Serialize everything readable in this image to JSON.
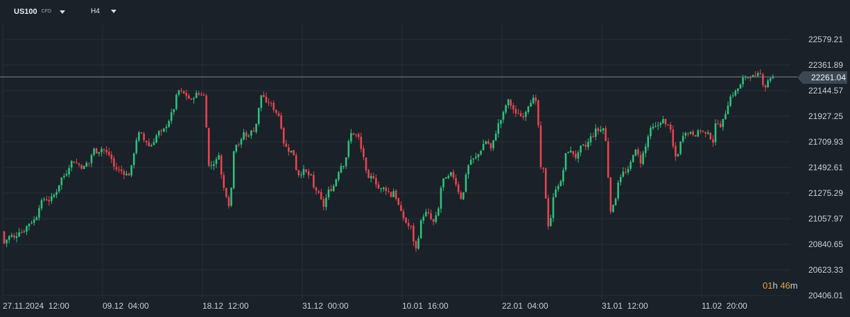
{
  "header": {
    "symbol": "US100",
    "instrument_type": "CFD",
    "timeframe": "H4"
  },
  "colors": {
    "background": "#1a2128",
    "bullish": "#2ec17d",
    "bearish": "#e8444f",
    "grid": "#26313a",
    "price_line": "#7d8a96",
    "countdown_accent": "#e6a23c"
  },
  "last_price": "22261.04",
  "countdown": {
    "hours": "01",
    "h_unit": "h",
    "minutes": "46",
    "m_unit": "m"
  },
  "chart_data": {
    "type": "candlestick",
    "y_axis_labels": [
      "22579.21",
      "22361.89",
      "22144.57",
      "21927.25",
      "21709.93",
      "21492.61",
      "21275.29",
      "21057.97",
      "20840.65",
      "20623.33",
      "20406.01"
    ],
    "x_axis_labels": [
      "27.11.2024  12:00",
      "09.12  04:00",
      "18.12  12:00",
      "31.12  00:00",
      "10.01  16:00",
      "22.01  04:00",
      "31.01  12:00",
      "11.02  20:00"
    ],
    "ylim": [
      20406.01,
      22579.21
    ],
    "grid": true,
    "last_price": 22261.04,
    "close_path": [
      [
        0,
        20950
      ],
      [
        4,
        20830
      ],
      [
        8,
        20870
      ],
      [
        12,
        20900
      ],
      [
        16,
        20920
      ],
      [
        20,
        20890
      ],
      [
        24,
        20920
      ],
      [
        28,
        20960
      ],
      [
        32,
        20940
      ],
      [
        36,
        20970
      ],
      [
        40,
        21010
      ],
      [
        44,
        21030
      ],
      [
        48,
        21040
      ],
      [
        52,
        21060
      ],
      [
        56,
        21160
      ],
      [
        60,
        21200
      ],
      [
        64,
        21230
      ],
      [
        68,
        21220
      ],
      [
        72,
        21210
      ],
      [
        76,
        21250
      ],
      [
        80,
        21270
      ],
      [
        84,
        21330
      ],
      [
        88,
        21400
      ],
      [
        92,
        21420
      ],
      [
        96,
        21450
      ],
      [
        100,
        21510
      ],
      [
        104,
        21550
      ],
      [
        108,
        21540
      ],
      [
        112,
        21520
      ],
      [
        116,
        21510
      ],
      [
        120,
        21480
      ],
      [
        124,
        21530
      ],
      [
        128,
        21520
      ],
      [
        132,
        21600
      ],
      [
        136,
        21650
      ],
      [
        140,
        21620
      ],
      [
        144,
        21640
      ],
      [
        148,
        21660
      ],
      [
        152,
        21620
      ],
      [
        156,
        21610
      ],
      [
        160,
        21580
      ],
      [
        164,
        21500
      ],
      [
        168,
        21480
      ],
      [
        172,
        21470
      ],
      [
        176,
        21460
      ],
      [
        180,
        21440
      ],
      [
        184,
        21430
      ],
      [
        188,
        21440
      ],
      [
        192,
        21580
      ],
      [
        196,
        21720
      ],
      [
        200,
        21780
      ],
      [
        204,
        21770
      ],
      [
        208,
        21720
      ],
      [
        212,
        21710
      ],
      [
        216,
        21660
      ],
      [
        220,
        21700
      ],
      [
        224,
        21740
      ],
      [
        228,
        21800
      ],
      [
        232,
        21780
      ],
      [
        236,
        21810
      ],
      [
        240,
        21850
      ],
      [
        244,
        21900
      ],
      [
        248,
        21960
      ],
      [
        252,
        22010
      ],
      [
        256,
        22150
      ],
      [
        260,
        22140
      ],
      [
        264,
        22120
      ],
      [
        268,
        22110
      ],
      [
        272,
        22080
      ],
      [
        276,
        22060
      ],
      [
        280,
        22100
      ],
      [
        284,
        22120
      ],
      [
        288,
        22110
      ],
      [
        292,
        22120
      ],
      [
        296,
        22080
      ],
      [
        300,
        21500
      ],
      [
        304,
        21510
      ],
      [
        308,
        21530
      ],
      [
        312,
        21550
      ],
      [
        316,
        21620
      ],
      [
        320,
        21380
      ],
      [
        324,
        21290
      ],
      [
        328,
        21240
      ],
      [
        332,
        21120
      ],
      [
        336,
        21620
      ],
      [
        340,
        21700
      ],
      [
        344,
        21690
      ],
      [
        348,
        21720
      ],
      [
        352,
        21800
      ],
      [
        356,
        21740
      ],
      [
        360,
        21790
      ],
      [
        364,
        21800
      ],
      [
        368,
        21820
      ],
      [
        372,
        21940
      ],
      [
        376,
        22110
      ],
      [
        380,
        22100
      ],
      [
        384,
        22030
      ],
      [
        388,
        22050
      ],
      [
        392,
        22020
      ],
      [
        396,
        21980
      ],
      [
        400,
        21950
      ],
      [
        404,
        21920
      ],
      [
        408,
        21720
      ],
      [
        412,
        21670
      ],
      [
        416,
        21640
      ],
      [
        420,
        21630
      ],
      [
        424,
        21600
      ],
      [
        428,
        21450
      ],
      [
        432,
        21430
      ],
      [
        436,
        21460
      ],
      [
        440,
        21470
      ],
      [
        444,
        21420
      ],
      [
        448,
        21440
      ],
      [
        452,
        21320
      ],
      [
        456,
        21300
      ],
      [
        460,
        21260
      ],
      [
        464,
        21200
      ],
      [
        468,
        21150
      ],
      [
        472,
        21290
      ],
      [
        476,
        21300
      ],
      [
        480,
        21320
      ],
      [
        484,
        21380
      ],
      [
        488,
        21460
      ],
      [
        492,
        21510
      ],
      [
        496,
        21520
      ],
      [
        500,
        21600
      ],
      [
        504,
        21750
      ],
      [
        508,
        21800
      ],
      [
        512,
        21760
      ],
      [
        516,
        21780
      ],
      [
        520,
        21660
      ],
      [
        524,
        21600
      ],
      [
        528,
        21450
      ],
      [
        532,
        21380
      ],
      [
        536,
        21420
      ],
      [
        540,
        21410
      ],
      [
        544,
        21330
      ],
      [
        548,
        21300
      ],
      [
        552,
        21320
      ],
      [
        556,
        21310
      ],
      [
        560,
        21290
      ],
      [
        564,
        21250
      ],
      [
        568,
        21300
      ],
      [
        572,
        21220
      ],
      [
        576,
        21150
      ],
      [
        580,
        21080
      ],
      [
        584,
        21050
      ],
      [
        588,
        20990
      ],
      [
        592,
        21010
      ],
      [
        596,
        20880
      ],
      [
        600,
        20800
      ],
      [
        604,
        20920
      ],
      [
        608,
        21060
      ],
      [
        612,
        21100
      ],
      [
        616,
        21110
      ],
      [
        620,
        21080
      ],
      [
        624,
        21010
      ],
      [
        628,
        21060
      ],
      [
        632,
        21120
      ],
      [
        636,
        21320
      ],
      [
        640,
        21400
      ],
      [
        644,
        21390
      ],
      [
        648,
        21420
      ],
      [
        652,
        21450
      ],
      [
        656,
        21380
      ],
      [
        660,
        21320
      ],
      [
        664,
        21230
      ],
      [
        668,
        21260
      ],
      [
        672,
        21440
      ],
      [
        676,
        21520
      ],
      [
        680,
        21570
      ],
      [
        684,
        21560
      ],
      [
        688,
        21590
      ],
      [
        692,
        21620
      ],
      [
        696,
        21680
      ],
      [
        700,
        21720
      ],
      [
        704,
        21700
      ],
      [
        708,
        21650
      ],
      [
        712,
        21720
      ],
      [
        716,
        21810
      ],
      [
        720,
        21880
      ],
      [
        724,
        21910
      ],
      [
        728,
        21990
      ],
      [
        732,
        22070
      ],
      [
        736,
        22030
      ],
      [
        740,
        21990
      ],
      [
        744,
        21940
      ],
      [
        748,
        21960
      ],
      [
        752,
        21920
      ],
      [
        756,
        21940
      ],
      [
        760,
        22000
      ],
      [
        764,
        22050
      ],
      [
        768,
        22070
      ],
      [
        772,
        22080
      ],
      [
        776,
        21890
      ],
      [
        780,
        21480
      ],
      [
        784,
        21470
      ],
      [
        788,
        21180
      ],
      [
        792,
        20930
      ],
      [
        796,
        21160
      ],
      [
        800,
        21300
      ],
      [
        804,
        21350
      ],
      [
        808,
        21340
      ],
      [
        812,
        21460
      ],
      [
        816,
        21600
      ],
      [
        820,
        21640
      ],
      [
        824,
        21620
      ],
      [
        828,
        21610
      ],
      [
        832,
        21560
      ],
      [
        836,
        21650
      ],
      [
        840,
        21680
      ],
      [
        844,
        21660
      ],
      [
        848,
        21700
      ],
      [
        852,
        21750
      ],
      [
        856,
        21770
      ],
      [
        860,
        21820
      ],
      [
        864,
        21800
      ],
      [
        868,
        21820
      ],
      [
        872,
        21830
      ],
      [
        876,
        21540
      ],
      [
        880,
        21130
      ],
      [
        884,
        21150
      ],
      [
        888,
        21240
      ],
      [
        892,
        21390
      ],
      [
        896,
        21430
      ],
      [
        900,
        21460
      ],
      [
        904,
        21440
      ],
      [
        908,
        21490
      ],
      [
        912,
        21600
      ],
      [
        916,
        21640
      ],
      [
        920,
        21600
      ],
      [
        924,
        21540
      ],
      [
        928,
        21620
      ],
      [
        932,
        21680
      ],
      [
        936,
        21790
      ],
      [
        940,
        21830
      ],
      [
        944,
        21830
      ],
      [
        948,
        21840
      ],
      [
        952,
        21880
      ],
      [
        956,
        21900
      ],
      [
        960,
        21850
      ],
      [
        964,
        21870
      ],
      [
        968,
        21780
      ],
      [
        972,
        21620
      ],
      [
        976,
        21560
      ],
      [
        980,
        21670
      ],
      [
        984,
        21760
      ],
      [
        988,
        21810
      ],
      [
        992,
        21770
      ],
      [
        996,
        21800
      ],
      [
        1000,
        21780
      ],
      [
        1004,
        21770
      ],
      [
        1008,
        21800
      ],
      [
        1012,
        21820
      ],
      [
        1016,
        21770
      ],
      [
        1020,
        21780
      ],
      [
        1024,
        21760
      ],
      [
        1028,
        21700
      ],
      [
        1032,
        21850
      ],
      [
        1036,
        21880
      ],
      [
        1040,
        21840
      ],
      [
        1044,
        21910
      ],
      [
        1048,
        21990
      ],
      [
        1052,
        22080
      ],
      [
        1056,
        22110
      ],
      [
        1060,
        22130
      ],
      [
        1064,
        22160
      ],
      [
        1068,
        22190
      ],
      [
        1072,
        22250
      ],
      [
        1076,
        22270
      ],
      [
        1080,
        22260
      ],
      [
        1084,
        22280
      ],
      [
        1088,
        22250
      ],
      [
        1092,
        22270
      ],
      [
        1096,
        22300
      ],
      [
        1100,
        22210
      ],
      [
        1104,
        22180
      ],
      [
        1108,
        22240
      ],
      [
        1112,
        22261
      ]
    ]
  }
}
